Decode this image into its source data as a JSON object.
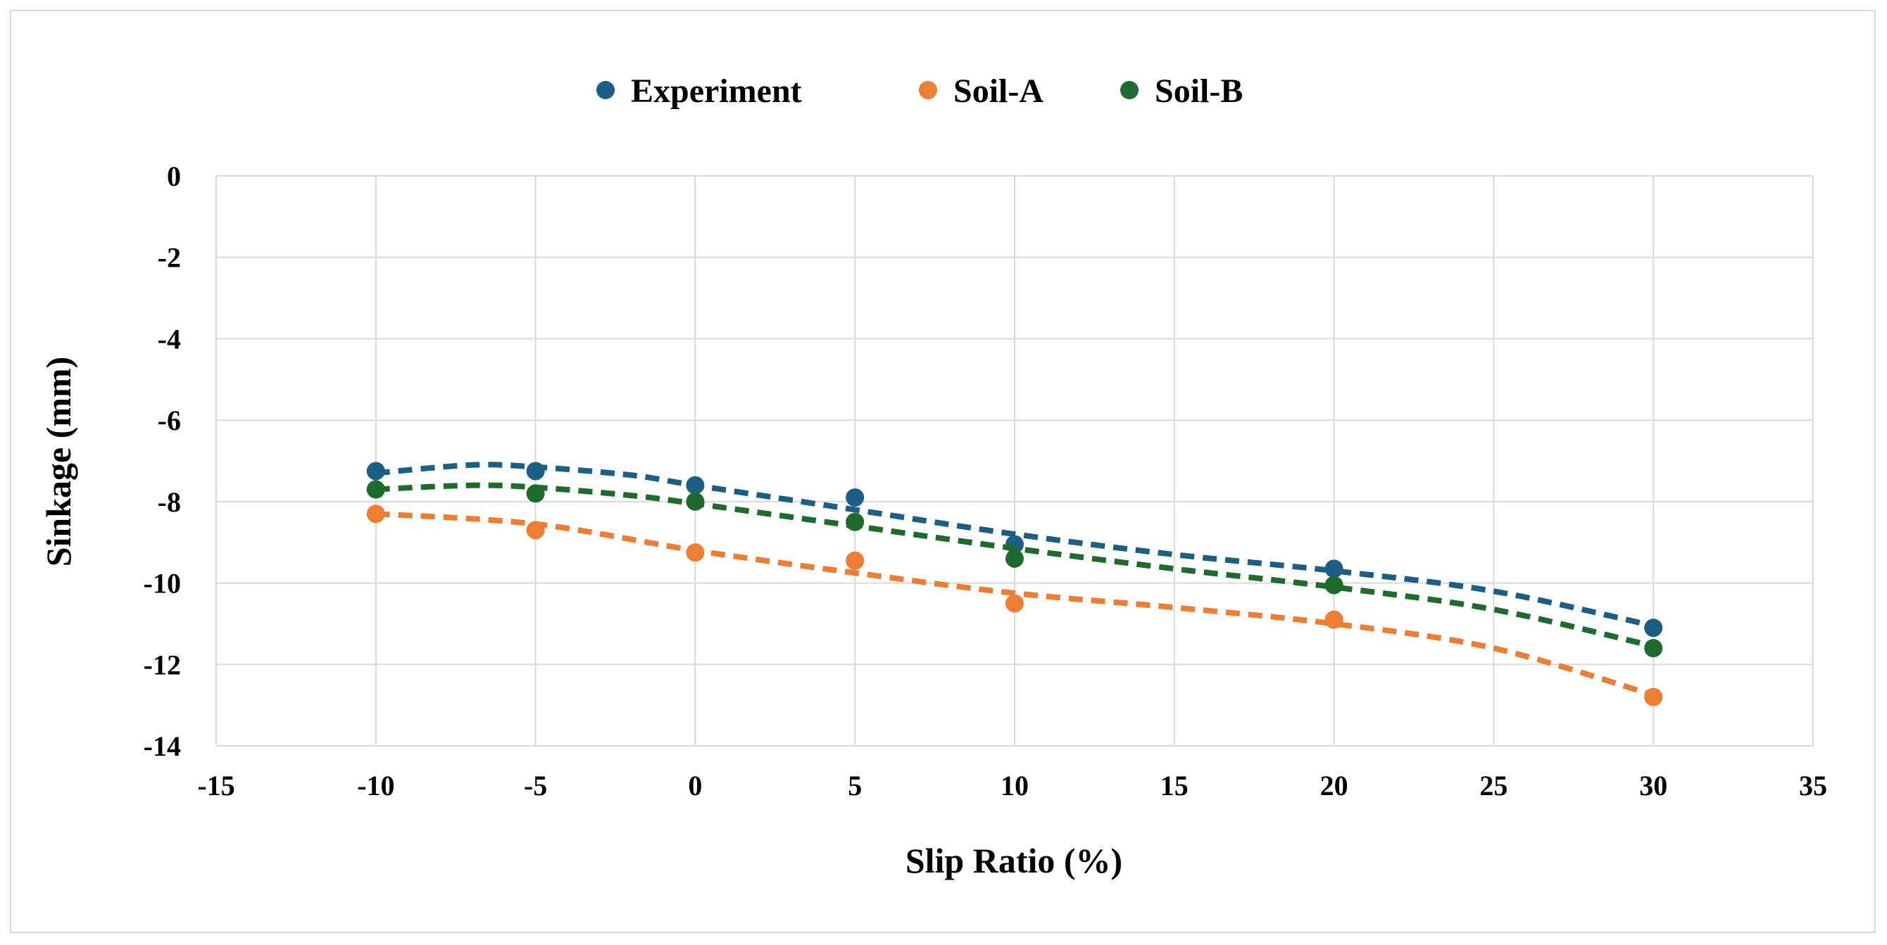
{
  "chart_data": {
    "type": "scatter",
    "title": "",
    "xlabel": "Slip Ratio (%)",
    "ylabel": "Sinkage (mm)",
    "xlim": [
      -15,
      35
    ],
    "ylim": [
      -14,
      0
    ],
    "xticks": [
      -15,
      -10,
      -5,
      0,
      5,
      10,
      15,
      20,
      25,
      30,
      35
    ],
    "yticks": [
      0,
      -2,
      -4,
      -6,
      -8,
      -10,
      -12,
      -14
    ],
    "xtick_labels": [
      "-15",
      "-10",
      "-5",
      "0",
      "5",
      "10",
      "15",
      "20",
      "25",
      "30",
      "35"
    ],
    "ytick_labels": [
      "0",
      "-2",
      "-4",
      "-6",
      "-8",
      "-10",
      "-12",
      "-14"
    ],
    "grid": true,
    "legend_position": "top-center",
    "trendline": "polynomial, dashed",
    "series": [
      {
        "name": "Experiment",
        "color": "#1b5e86",
        "x": [
          -10,
          -5,
          0,
          5,
          10,
          20,
          30
        ],
        "y": [
          -7.25,
          -7.25,
          -7.6,
          -7.9,
          -9.05,
          -9.65,
          -11.1
        ],
        "trend": [
          [
            -10,
            -7.3
          ],
          [
            -7,
            -7.1
          ],
          [
            -5,
            -7.15
          ],
          [
            -2,
            -7.35
          ],
          [
            0,
            -7.6
          ],
          [
            5,
            -8.2
          ],
          [
            10,
            -8.8
          ],
          [
            15,
            -9.3
          ],
          [
            20,
            -9.7
          ],
          [
            25,
            -10.2
          ],
          [
            30,
            -11.05
          ]
        ]
      },
      {
        "name": "Soil-A",
        "color": "#ed7d31",
        "x": [
          -10,
          -5,
          0,
          5,
          10,
          20,
          30
        ],
        "y": [
          -8.3,
          -8.7,
          -9.25,
          -9.45,
          -10.5,
          -10.9,
          -12.8
        ],
        "trend": [
          [
            -10,
            -8.3
          ],
          [
            -5,
            -8.55
          ],
          [
            0,
            -9.2
          ],
          [
            5,
            -9.75
          ],
          [
            10,
            -10.25
          ],
          [
            15,
            -10.6
          ],
          [
            20,
            -11.0
          ],
          [
            25,
            -11.6
          ],
          [
            30,
            -12.75
          ]
        ]
      },
      {
        "name": "Soil-B",
        "color": "#1e6b2e",
        "x": [
          -10,
          -5,
          0,
          5,
          10,
          20,
          30
        ],
        "y": [
          -7.7,
          -7.8,
          -8.0,
          -8.5,
          -9.4,
          -10.05,
          -11.6
        ],
        "trend": [
          [
            -10,
            -7.7
          ],
          [
            -7,
            -7.6
          ],
          [
            -5,
            -7.65
          ],
          [
            -2,
            -7.85
          ],
          [
            0,
            -8.05
          ],
          [
            5,
            -8.6
          ],
          [
            10,
            -9.15
          ],
          [
            15,
            -9.65
          ],
          [
            20,
            -10.1
          ],
          [
            25,
            -10.65
          ],
          [
            30,
            -11.55
          ]
        ]
      }
    ]
  }
}
